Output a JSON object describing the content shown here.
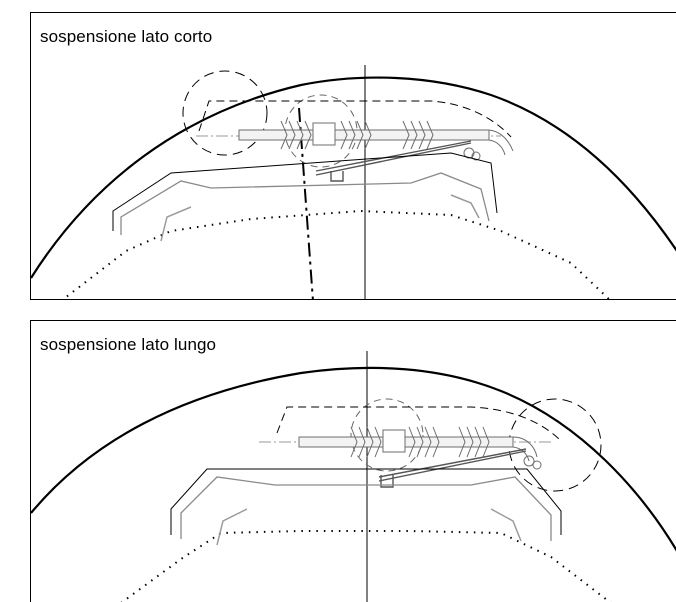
{
  "panels": [
    {
      "title": "sospensione lato corto"
    },
    {
      "title": "sospensione lato lungo"
    }
  ],
  "colors": {
    "line": "#000000",
    "gray": "#8a8a8a",
    "light_gray": "#b5b5b5"
  }
}
